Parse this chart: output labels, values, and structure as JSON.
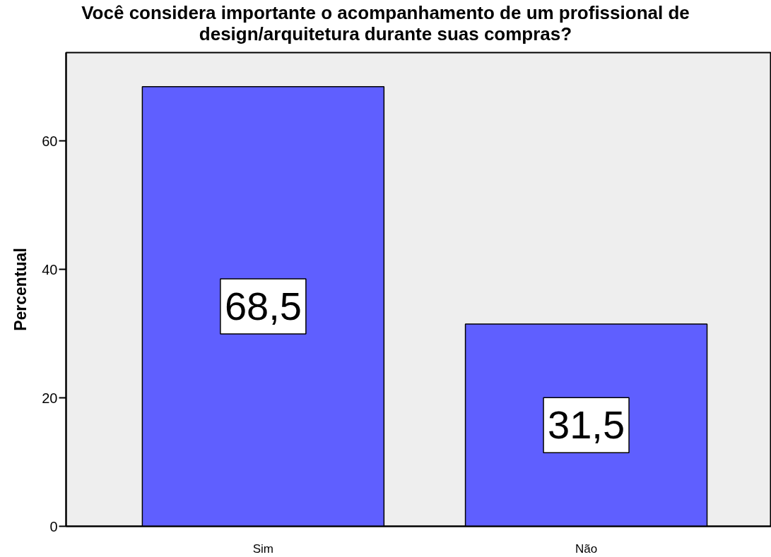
{
  "chart_data": {
    "type": "bar",
    "title": "Você considera importante o acompanhamento de um profissional de\ndesign/arquitetura durante suas compras?",
    "ylabel": "Percentual",
    "categories": [
      "Sim",
      "Não"
    ],
    "values": [
      68.5,
      31.5
    ],
    "color": "#5f5fff",
    "value_labels": [
      "68,5",
      "31,5"
    ],
    "ylim": [
      0,
      73.8
    ],
    "yticks": [
      0,
      20,
      40,
      60
    ]
  }
}
